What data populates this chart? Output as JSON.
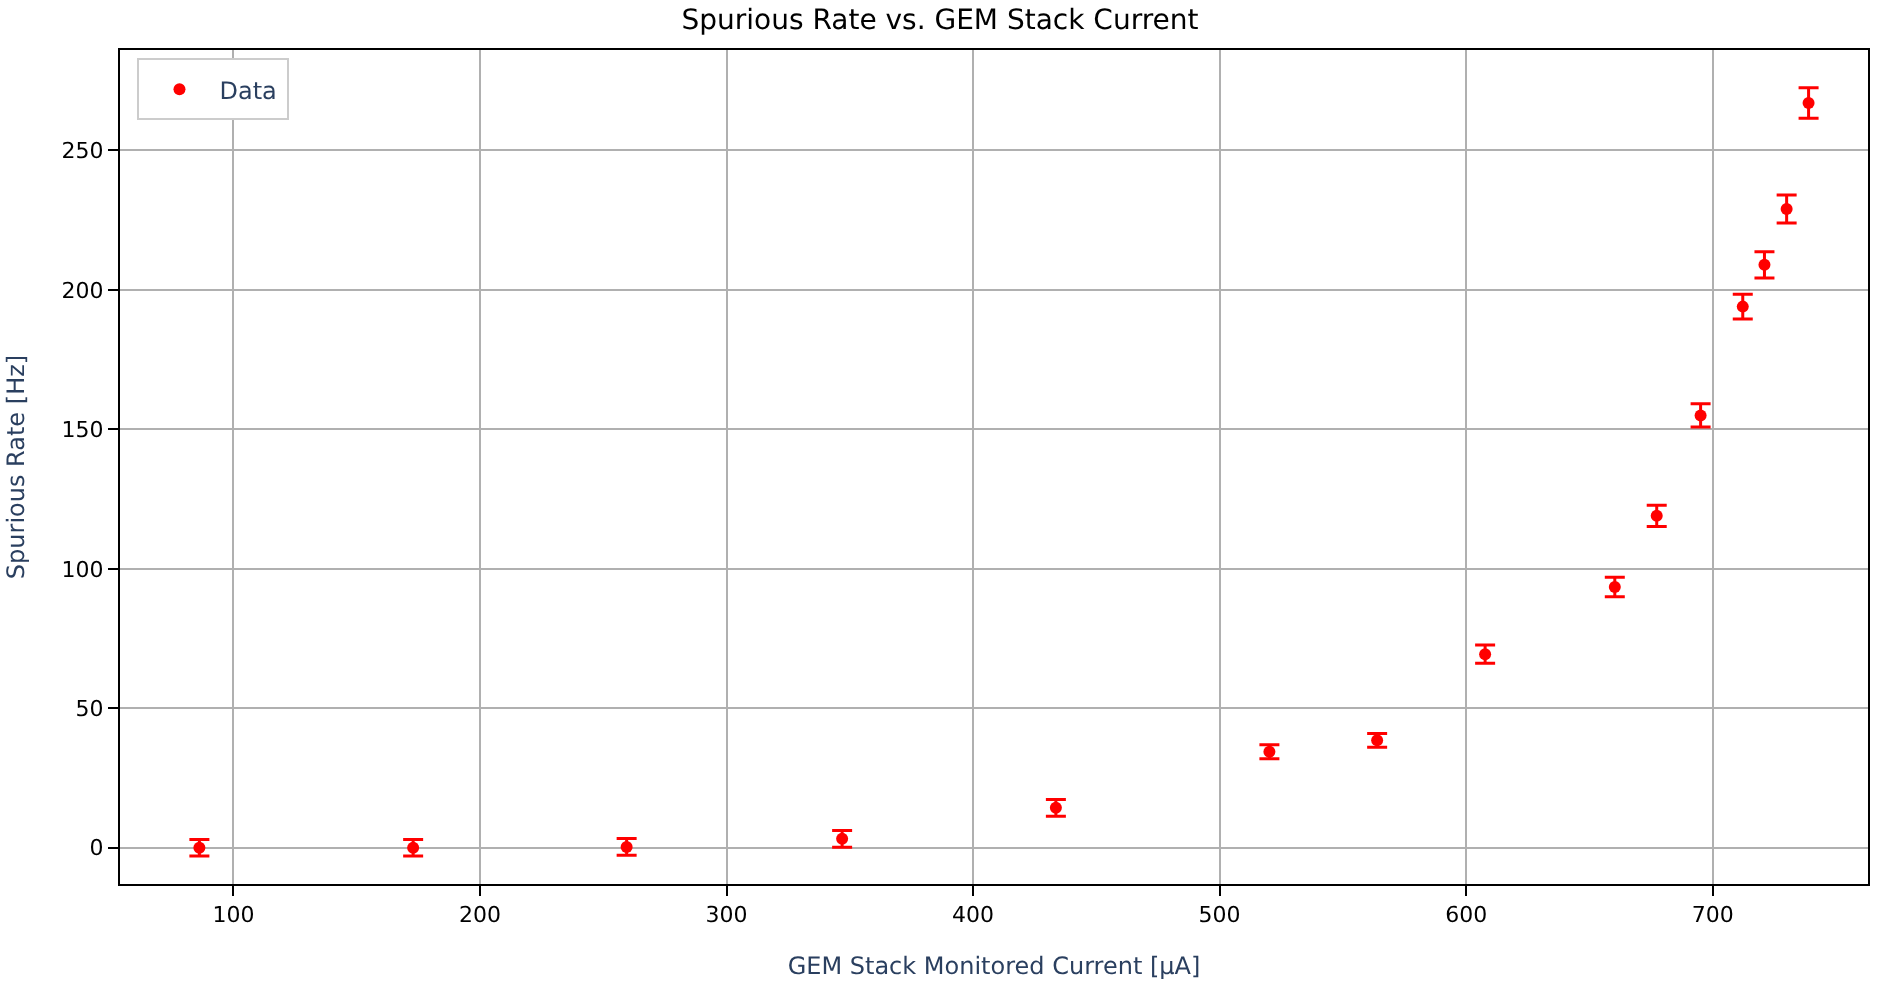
{
  "chart_data": {
    "type": "scatter",
    "title": "Spurious Rate vs. GEM Stack Current",
    "xlabel": "GEM Stack Monitored Current [μA]",
    "ylabel": "Spurious Rate [Hz]",
    "x": [
      86.2,
      172.9,
      259.5,
      346.9,
      433.6,
      520.2,
      563.9,
      607.7,
      660.3,
      677.3,
      695.1,
      712.2,
      721,
      730,
      738.9
    ],
    "series": [
      {
        "name": "Data",
        "color": "#ff0000",
        "values": [
          0,
          0,
          0.3,
          3.2,
          14.3,
          34.4,
          38.5,
          69.4,
          93.5,
          119,
          155,
          194,
          209,
          229,
          267
        ],
        "errors": [
          3,
          3,
          3,
          3,
          3,
          2.5,
          2.5,
          3.3,
          3.5,
          3.8,
          4.2,
          4.4,
          4.7,
          5,
          5.5
        ],
        "xerrors": [
          2,
          2,
          2,
          2,
          2,
          2,
          2,
          2,
          2,
          2,
          2,
          2,
          2,
          2,
          2
        ]
      }
    ],
    "xlim": [
      54,
      763
    ],
    "ylim": [
      -13,
      286
    ],
    "xticks": [
      100,
      200,
      300,
      400,
      500,
      600,
      700
    ],
    "yticks": [
      0,
      50,
      100,
      150,
      200,
      250
    ],
    "grid": true,
    "legend": "top left",
    "marker": "circle"
  }
}
